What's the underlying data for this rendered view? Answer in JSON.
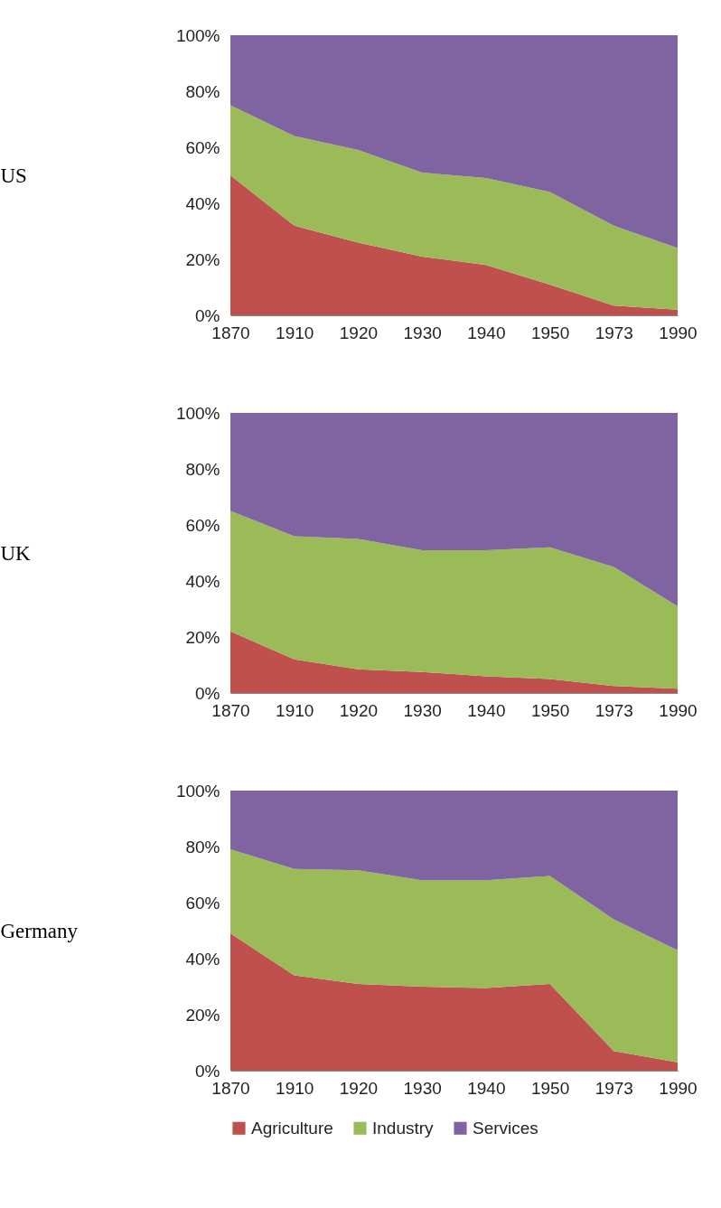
{
  "chart_data": [
    {
      "type": "area",
      "stacked": true,
      "ylabel": "US",
      "categories": [
        "1870",
        "1910",
        "1920",
        "1930",
        "1940",
        "1950",
        "1973",
        "1990"
      ],
      "ylim": [
        0,
        100
      ],
      "yticks": [
        {
          "value": 0,
          "label": "0%"
        },
        {
          "value": 20,
          "label": "20%"
        },
        {
          "value": 40,
          "label": "40%"
        },
        {
          "value": 60,
          "label": "60%"
        },
        {
          "value": 80,
          "label": "80%"
        },
        {
          "value": 100,
          "label": "100%"
        }
      ],
      "series": [
        {
          "color": "#c0504d",
          "values": [
            50,
            32,
            26,
            21,
            18,
            11,
            3.5,
            2
          ]
        },
        {
          "color": "#9bbb59",
          "values": [
            25,
            32,
            33,
            30,
            31,
            33,
            28.5,
            22
          ]
        },
        {
          "color": "#8064a2",
          "values": [
            25,
            36,
            41,
            49,
            51,
            56,
            68,
            76
          ]
        }
      ]
    },
    {
      "type": "area",
      "stacked": true,
      "ylabel": "UK",
      "categories": [
        "1870",
        "1910",
        "1920",
        "1930",
        "1940",
        "1950",
        "1973",
        "1990"
      ],
      "ylim": [
        0,
        100
      ],
      "yticks": [
        {
          "value": 0,
          "label": "0%"
        },
        {
          "value": 20,
          "label": "20%"
        },
        {
          "value": 40,
          "label": "40%"
        },
        {
          "value": 60,
          "label": "60%"
        },
        {
          "value": 80,
          "label": "80%"
        },
        {
          "value": 100,
          "label": "100%"
        }
      ],
      "series": [
        {
          "color": "#c0504d",
          "values": [
            22,
            12,
            8.5,
            7.5,
            6,
            5,
            2.5,
            1.5
          ]
        },
        {
          "color": "#9bbb59",
          "values": [
            43,
            44,
            46.5,
            43.5,
            45,
            47,
            42.5,
            29.5
          ]
        },
        {
          "color": "#8064a2",
          "values": [
            35,
            44,
            45,
            49,
            49,
            48,
            55,
            69
          ]
        }
      ]
    },
    {
      "type": "area",
      "stacked": true,
      "ylabel": "Germany",
      "categories": [
        "1870",
        "1910",
        "1920",
        "1930",
        "1940",
        "1950",
        "1973",
        "1990"
      ],
      "ylim": [
        0,
        100
      ],
      "yticks": [
        {
          "value": 0,
          "label": "0%"
        },
        {
          "value": 20,
          "label": "20%"
        },
        {
          "value": 40,
          "label": "40%"
        },
        {
          "value": 60,
          "label": "60%"
        },
        {
          "value": 80,
          "label": "80%"
        },
        {
          "value": 100,
          "label": "100%"
        }
      ],
      "legend": "bottom",
      "series": [
        {
          "name": "Agriculture",
          "color": "#c0504d",
          "values": [
            49,
            34,
            31,
            30,
            29.5,
            31,
            7,
            3
          ]
        },
        {
          "name": "Industry",
          "color": "#9bbb59",
          "values": [
            30,
            38,
            40.5,
            38,
            38.5,
            38.5,
            47,
            40
          ]
        },
        {
          "name": "Services",
          "color": "#8064a2",
          "values": [
            21,
            28,
            28.5,
            32,
            32,
            30.5,
            46,
            57
          ]
        }
      ]
    }
  ]
}
